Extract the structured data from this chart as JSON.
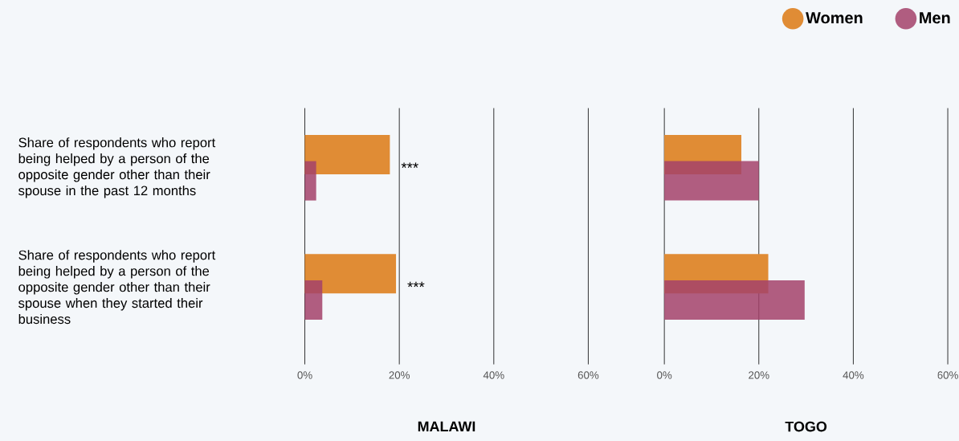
{
  "chart_data": [
    {
      "type": "bar",
      "orientation": "horizontal",
      "xlabel": "MALAWI",
      "categories": [
        "Share of respondents who report being helped by a person of the opposite gender other than their spouse in the past 12 months",
        "Share of respondents who report being helped by a person of the opposite gender other than their spouse when they started their business"
      ],
      "series": [
        {
          "color": "#e08c35",
          "values": [
            18.0,
            19.3
          ]
        },
        {
          "color": "#a3426a",
          "values": [
            2.4,
            3.7
          ]
        }
      ],
      "xlim": [
        0,
        60
      ],
      "xticks": [
        {
          "value": 0,
          "label": "0%"
        },
        {
          "value": 20,
          "label": "20%"
        },
        {
          "value": 40,
          "label": "40%"
        },
        {
          "value": 60,
          "label": "60%"
        }
      ],
      "grid": "x",
      "annotations": [
        "***",
        "***"
      ]
    },
    {
      "type": "bar",
      "orientation": "horizontal",
      "xlabel": "TOGO",
      "categories": [
        null,
        null
      ],
      "series": [
        {
          "name": "Women",
          "color": "#e08c35",
          "values": [
            16.3,
            22.0
          ]
        },
        {
          "name": "Men",
          "color": "#a3426a",
          "values": [
            20.0,
            29.7
          ]
        }
      ],
      "xlim": [
        0,
        60
      ],
      "xticks": [
        {
          "value": 0,
          "label": "0%"
        },
        {
          "value": 20,
          "label": "20%"
        },
        {
          "value": 40,
          "label": "40%"
        },
        {
          "value": 60,
          "label": "60%"
        }
      ],
      "grid": "x",
      "tick_labels": "x",
      "legend": "top right"
    }
  ]
}
